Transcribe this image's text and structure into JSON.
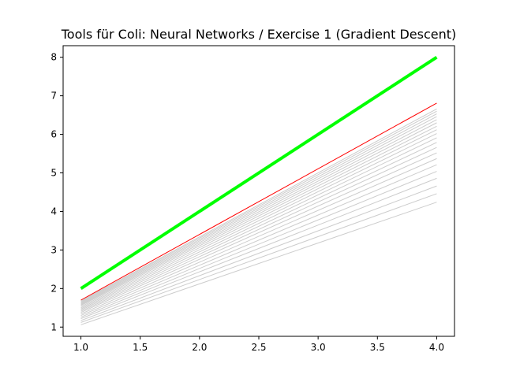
{
  "chart_data": {
    "type": "line",
    "title": "Tools für Coli:  Neural Networks / Exercise 1 (Gradient Descent)",
    "xlabel": "",
    "ylabel": "",
    "xlim": [
      0.85,
      4.15
    ],
    "ylim": [
      0.76,
      8.3
    ],
    "x_ticks": [
      1.0,
      1.5,
      2.0,
      2.5,
      3.0,
      3.5,
      4.0
    ],
    "x_tick_labels": [
      "1.0",
      "1.5",
      "2.0",
      "2.5",
      "3.0",
      "3.5",
      "4.0"
    ],
    "y_ticks": [
      1,
      2,
      3,
      4,
      5,
      6,
      7,
      8
    ],
    "y_tick_labels": [
      "1",
      "2",
      "3",
      "4",
      "5",
      "6",
      "7",
      "8"
    ],
    "grid": false,
    "legend": "none",
    "series": [
      {
        "role": "iteration",
        "x": [
          1,
          4
        ],
        "y": [
          1.06,
          4.24
        ],
        "color": "#cccccc"
      },
      {
        "role": "iteration",
        "x": [
          1,
          4
        ],
        "y": [
          1.12,
          4.46
        ],
        "color": "#cccccc"
      },
      {
        "role": "iteration",
        "x": [
          1,
          4
        ],
        "y": [
          1.17,
          4.66
        ],
        "color": "#cccccc"
      },
      {
        "role": "iteration",
        "x": [
          1,
          4
        ],
        "y": [
          1.22,
          4.86
        ],
        "color": "#cccccc"
      },
      {
        "role": "iteration",
        "x": [
          1,
          4
        ],
        "y": [
          1.26,
          5.04
        ],
        "color": "#cccccc"
      },
      {
        "role": "iteration",
        "x": [
          1,
          4
        ],
        "y": [
          1.3,
          5.21
        ],
        "color": "#cccccc"
      },
      {
        "role": "iteration",
        "x": [
          1,
          4
        ],
        "y": [
          1.34,
          5.37
        ],
        "color": "#cccccc"
      },
      {
        "role": "iteration",
        "x": [
          1,
          4
        ],
        "y": [
          1.38,
          5.52
        ],
        "color": "#cccccc"
      },
      {
        "role": "iteration",
        "x": [
          1,
          4
        ],
        "y": [
          1.41,
          5.66
        ],
        "color": "#cccccc"
      },
      {
        "role": "iteration",
        "x": [
          1,
          4
        ],
        "y": [
          1.44,
          5.79
        ],
        "color": "#cccccc"
      },
      {
        "role": "iteration",
        "x": [
          1,
          4
        ],
        "y": [
          1.47,
          5.91
        ],
        "color": "#cccccc"
      },
      {
        "role": "iteration",
        "x": [
          1,
          4
        ],
        "y": [
          1.5,
          6.02
        ],
        "color": "#cccccc"
      },
      {
        "role": "iteration",
        "x": [
          1,
          4
        ],
        "y": [
          1.53,
          6.12
        ],
        "color": "#cccccc"
      },
      {
        "role": "iteration",
        "x": [
          1,
          4
        ],
        "y": [
          1.56,
          6.21
        ],
        "color": "#cccccc"
      },
      {
        "role": "iteration",
        "x": [
          1,
          4
        ],
        "y": [
          1.58,
          6.3
        ],
        "color": "#cccccc"
      },
      {
        "role": "iteration",
        "x": [
          1,
          4
        ],
        "y": [
          1.6,
          6.38
        ],
        "color": "#cccccc"
      },
      {
        "role": "iteration",
        "x": [
          1,
          4
        ],
        "y": [
          1.62,
          6.46
        ],
        "color": "#cccccc"
      },
      {
        "role": "iteration",
        "x": [
          1,
          4
        ],
        "y": [
          1.64,
          6.53
        ],
        "color": "#cccccc"
      },
      {
        "role": "iteration",
        "x": [
          1,
          4
        ],
        "y": [
          1.66,
          6.6
        ],
        "color": "#cccccc"
      },
      {
        "role": "iteration",
        "x": [
          1,
          4
        ],
        "y": [
          1.68,
          6.66
        ],
        "color": "#cccccc"
      },
      {
        "role": "fitted",
        "x": [
          1,
          4
        ],
        "y": [
          1.7,
          6.81
        ],
        "color": "#ff0000"
      },
      {
        "role": "target",
        "x": [
          1,
          4
        ],
        "y": [
          2.0,
          8.0
        ],
        "color": "#00ff00"
      }
    ]
  }
}
